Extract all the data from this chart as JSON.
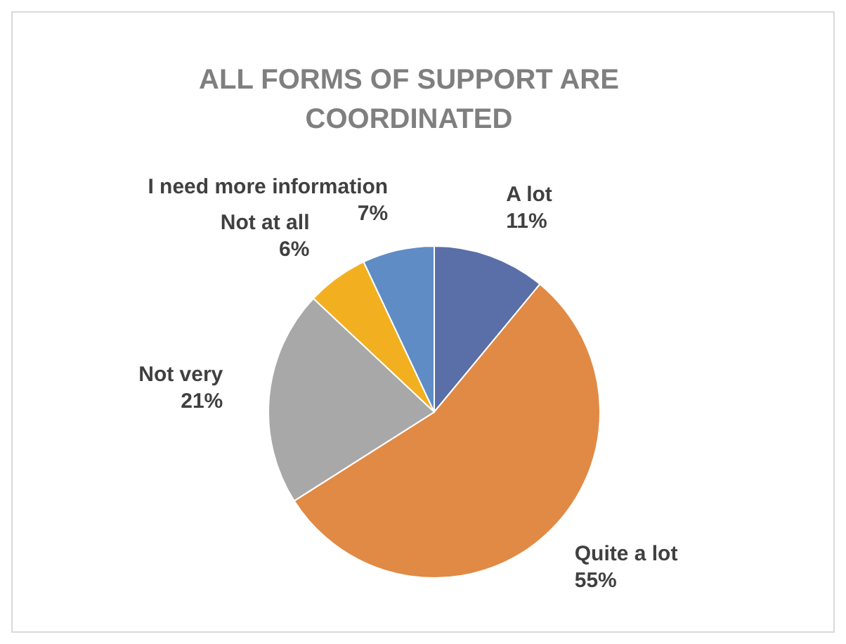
{
  "chart_data": {
    "type": "pie",
    "title": "ALL FORMS OF SUPPORT ARE COORDINATED",
    "categories": [
      "A lot",
      "Quite a lot",
      "Not very",
      "Not at all",
      "I need more information"
    ],
    "values": [
      11,
      55,
      21,
      6,
      7
    ],
    "value_labels": [
      "11%",
      "55%",
      "21%",
      "6%",
      "7%"
    ],
    "colors": [
      "#5a6fa8",
      "#e08a45",
      "#a8a8a8",
      "#f2b021",
      "#5f8cc4"
    ]
  }
}
